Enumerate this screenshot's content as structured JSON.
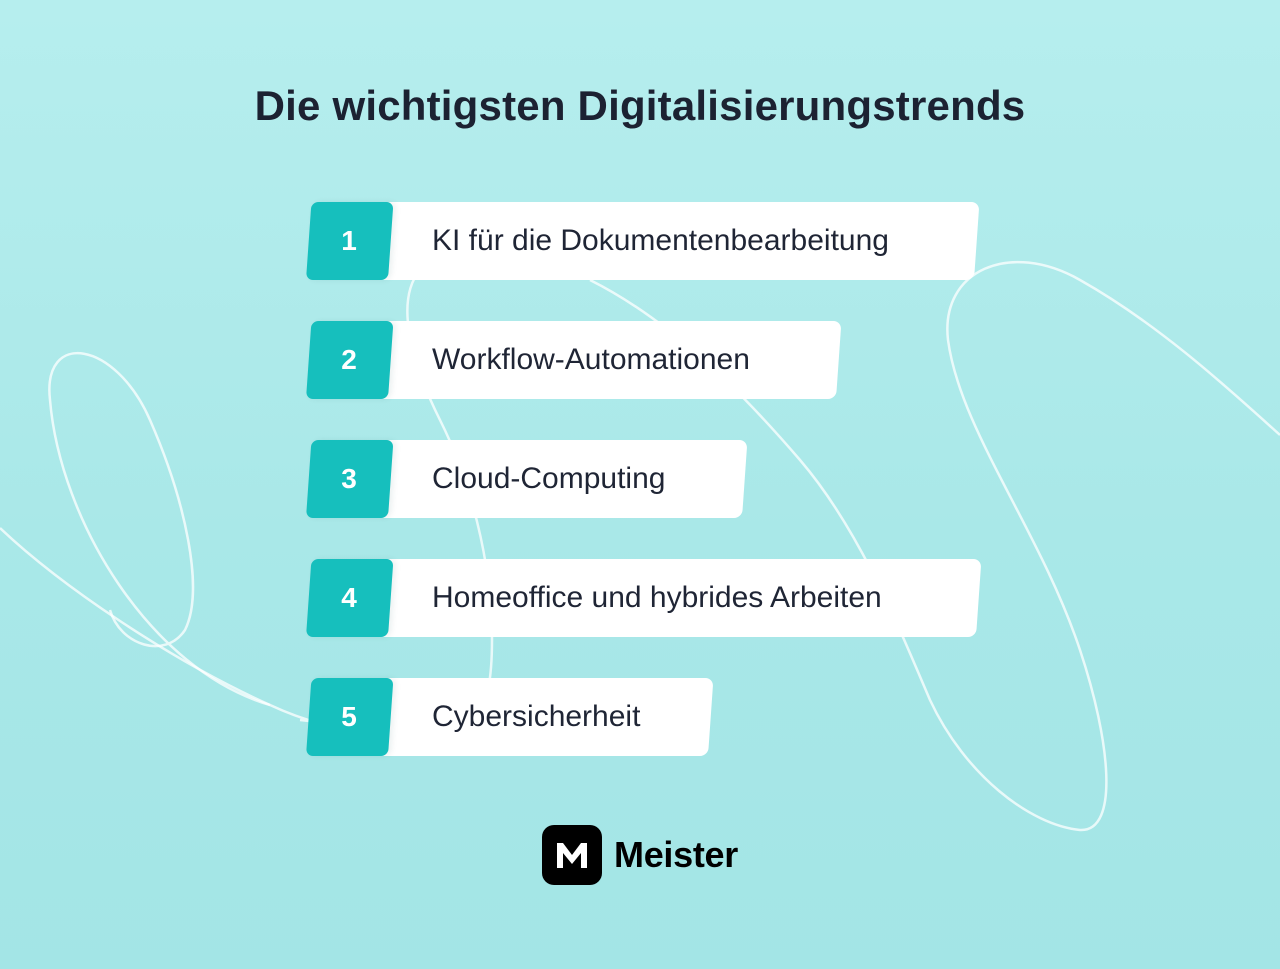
{
  "title": "Die wichtigsten Digitalisierungstrends",
  "trends": [
    {
      "number": "1",
      "label": "KI für die Dokumentenbearbeitung"
    },
    {
      "number": "2",
      "label": "Workflow-Automationen"
    },
    {
      "number": "3",
      "label": "Cloud-Computing"
    },
    {
      "number": "4",
      "label": "Homeoffice und hybrides Arbeiten"
    },
    {
      "number": "5",
      "label": "Cybersicherheit"
    }
  ],
  "brand": {
    "name": "Meister",
    "logo_icon": "meister-m-logo-icon"
  },
  "colors": {
    "background": "#aeeaea",
    "accent": "#16bfbd",
    "card": "#ffffff",
    "text": "#1d2333",
    "logo": "#000000"
  }
}
